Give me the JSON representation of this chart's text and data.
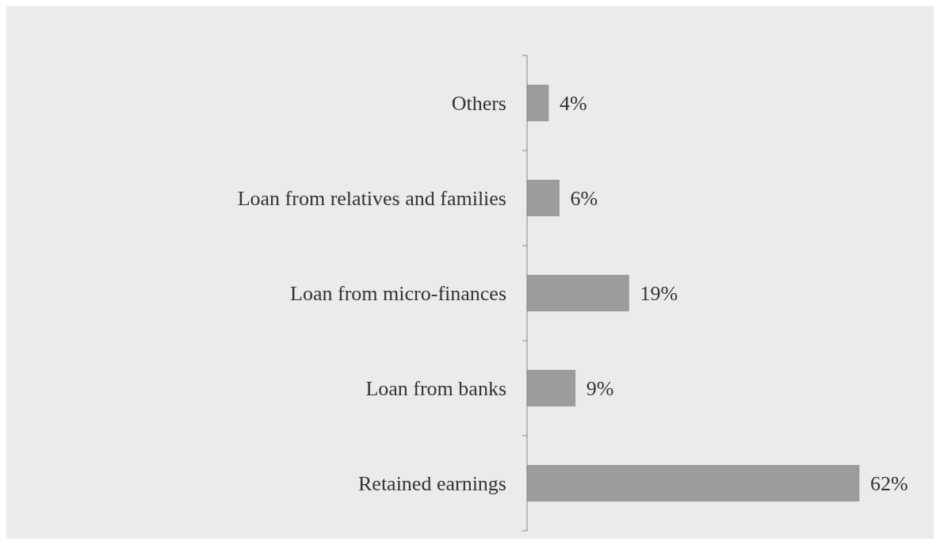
{
  "chart_data": {
    "type": "bar",
    "orientation": "horizontal",
    "categories": [
      "Others",
      "Loan from relatives and families",
      "Loan from micro-finances",
      "Loan from banks",
      "Retained earnings"
    ],
    "values": [
      4,
      6,
      19,
      9,
      62
    ],
    "value_labels": [
      "4%",
      "6%",
      "19%",
      "9%",
      "62%"
    ],
    "color": "#9c9c9c"
  }
}
